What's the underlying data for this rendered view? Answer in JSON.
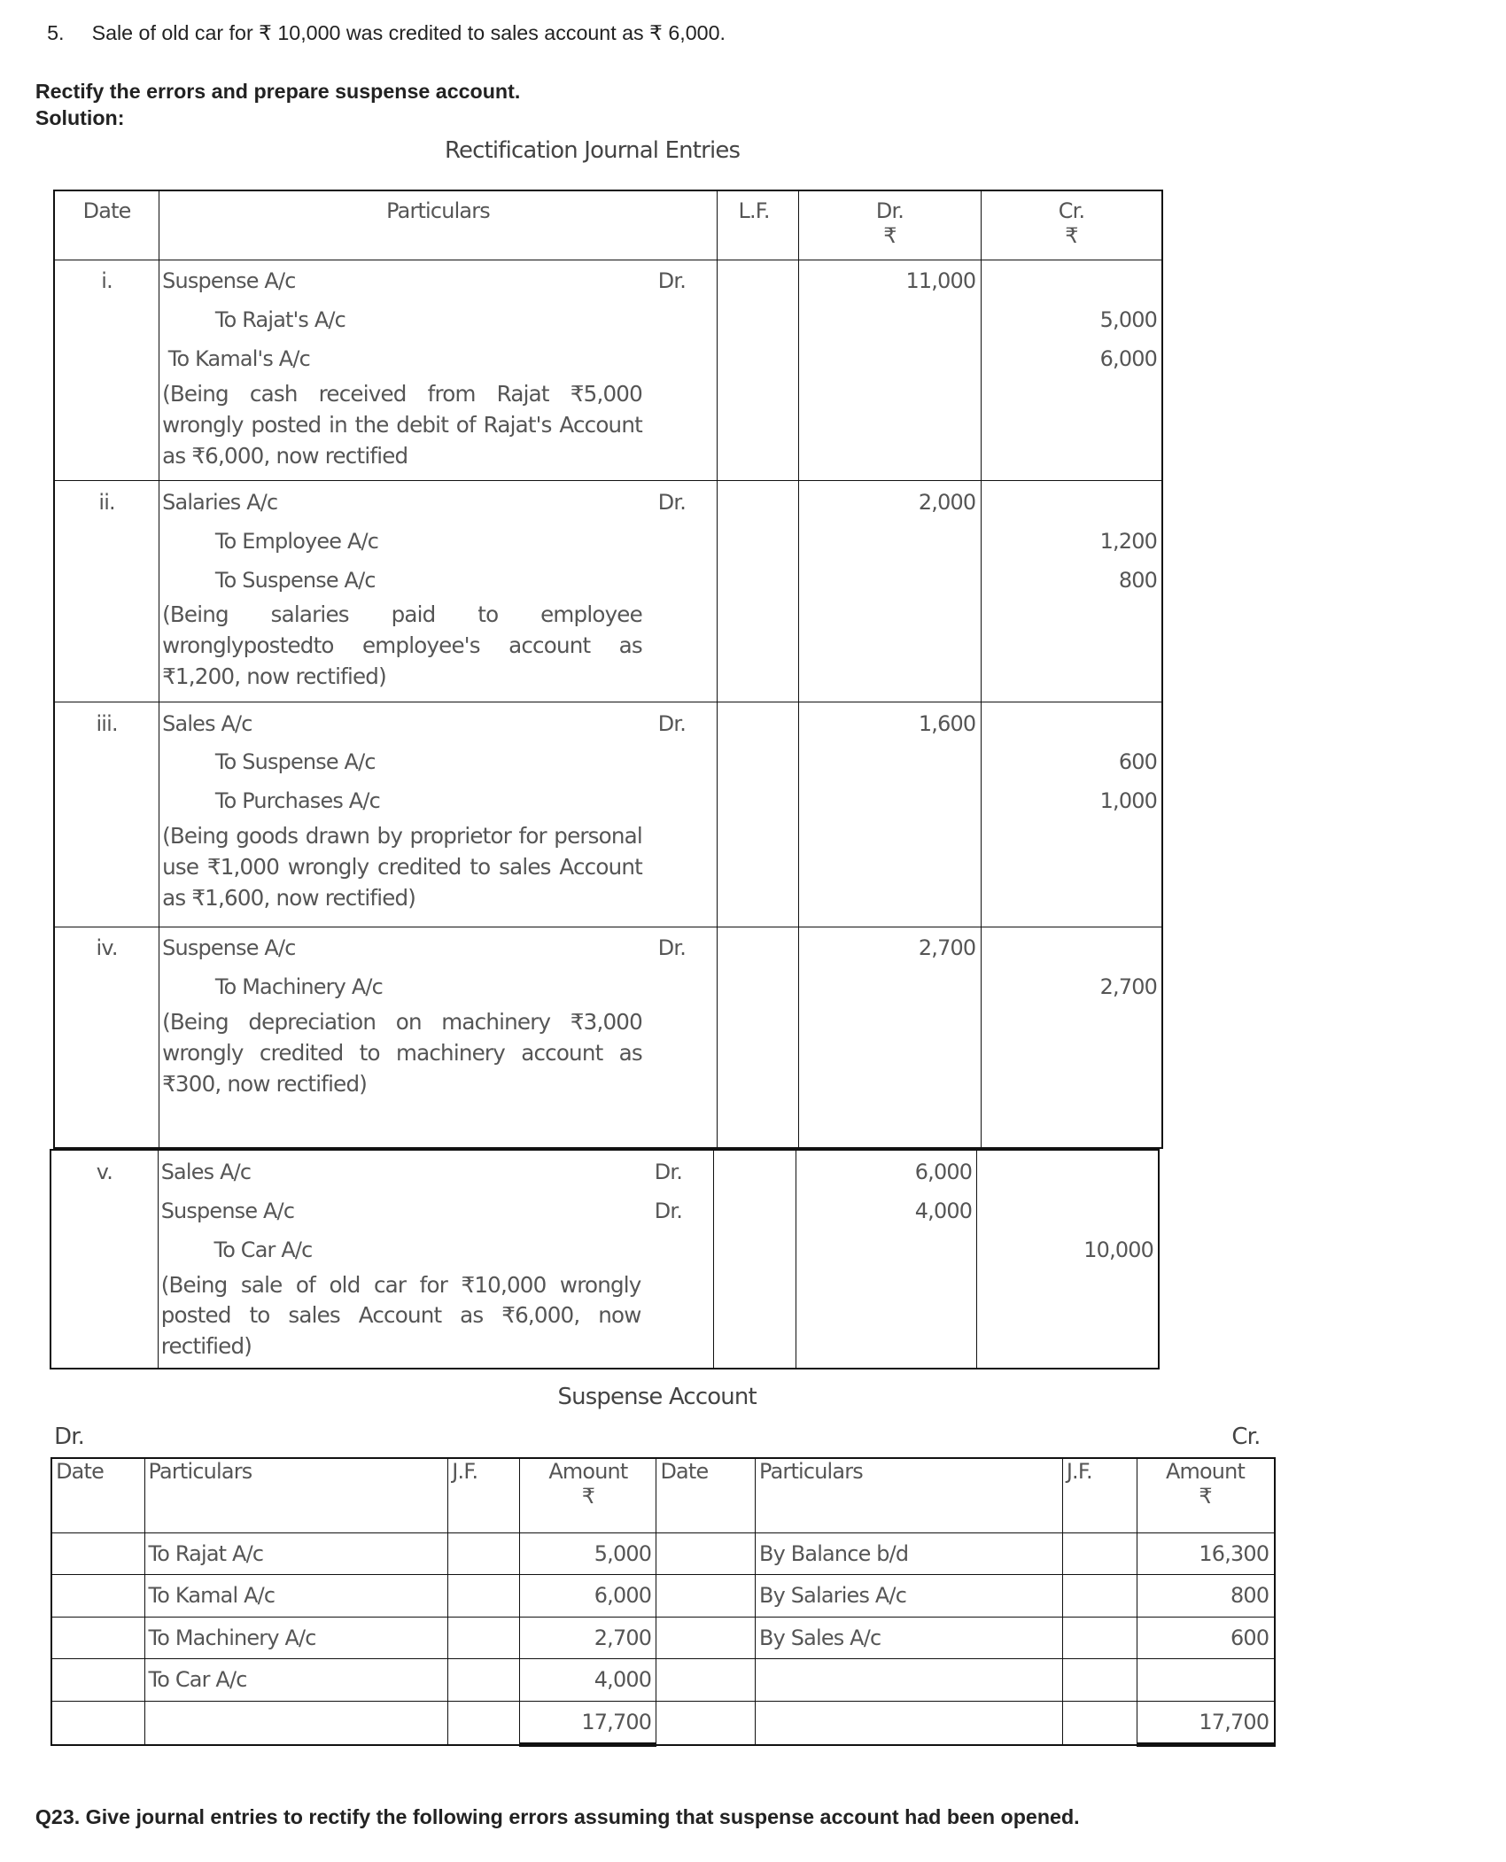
{
  "question_item": {
    "number": "5.",
    "text": "Sale of old car for ₹ 10,000 was credited to sales account as ₹ 6,000."
  },
  "instruction": "Rectify the errors and prepare suspense account.",
  "solution_label": "Solution:",
  "journal": {
    "title": "Rectification Journal Entries",
    "headers": {
      "date": "Date",
      "particulars": "Particulars",
      "lf": "L.F.",
      "dr": "Dr.",
      "cr": "Cr.",
      "currency": "₹"
    },
    "entries": [
      {
        "no": "i.",
        "lines": [
          {
            "text": "Suspense A/c",
            "level": 0,
            "marker": "Dr.",
            "dr": "11,000",
            "cr": ""
          },
          {
            "text": "To Rajat's A/c",
            "level": 2,
            "marker": "",
            "dr": "",
            "cr": "5,000"
          },
          {
            "text": "To Kamal's A/c",
            "level": 1,
            "marker": "",
            "dr": "",
            "cr": "6,000"
          }
        ],
        "narration": "(Being cash received from Rajat ₹5,000 wrongly posted in the debit of Rajat's Account as ₹6,000, now rectified"
      },
      {
        "no": "ii.",
        "lines": [
          {
            "text": "Salaries A/c",
            "level": 0,
            "marker": "Dr.",
            "dr": "2,000",
            "cr": ""
          },
          {
            "text": "To Employee A/c",
            "level": 2,
            "marker": "",
            "dr": "",
            "cr": "1,200"
          },
          {
            "text": "To Suspense A/c",
            "level": 2,
            "marker": "",
            "dr": "",
            "cr": "800"
          }
        ],
        "narration": "(Being salaries paid to employee wronglypostedto employee's account as ₹1,200, now rectified)"
      },
      {
        "no": "iii.",
        "lines": [
          {
            "text": "Sales A/c",
            "level": 0,
            "marker": "Dr.",
            "dr": "1,600",
            "cr": ""
          },
          {
            "text": "To Suspense A/c",
            "level": 2,
            "marker": "",
            "dr": "",
            "cr": "600"
          },
          {
            "text": "To Purchases A/c",
            "level": 2,
            "marker": "",
            "dr": "",
            "cr": "1,000"
          }
        ],
        "narration": "(Being goods drawn by proprietor for personal use ₹1,000 wrongly credited to sales Account as ₹1,600, now rectified)"
      },
      {
        "no": "iv.",
        "lines": [
          {
            "text": "Suspense A/c",
            "level": 0,
            "marker": "Dr.",
            "dr": "2,700",
            "cr": ""
          },
          {
            "text": "To Machinery A/c",
            "level": 2,
            "marker": "",
            "dr": "",
            "cr": "2,700"
          }
        ],
        "narration": "(Being depreciation on machinery ₹3,000 wrongly credited to machinery account as ₹300, now rectified)"
      },
      {
        "no": "v.",
        "lines": [
          {
            "text": "Sales A/c",
            "level": 0,
            "marker": "Dr.",
            "dr": "6,000",
            "cr": ""
          },
          {
            "text": "Suspense A/c",
            "level": 0,
            "marker": "Dr.",
            "dr": "4,000",
            "cr": ""
          },
          {
            "text": "To Car A/c",
            "level": 2,
            "marker": "",
            "dr": "",
            "cr": "10,000"
          }
        ],
        "narration": "(Being sale of old car for ₹10,000 wrongly posted to sales Account as ₹6,000, now rectified)"
      }
    ]
  },
  "suspense": {
    "title": "Suspense Account",
    "dr_label": "Dr.",
    "cr_label": "Cr.",
    "headers": {
      "date": "Date",
      "particulars": "Particulars",
      "jf": "J.F.",
      "amount": "Amount",
      "currency": "₹"
    },
    "rows": [
      {
        "dr_particulars": "To Rajat A/c",
        "dr_amount": "5,000",
        "cr_particulars": "By Balance b/d",
        "cr_amount": "16,300"
      },
      {
        "dr_particulars": "To Kamal A/c",
        "dr_amount": "6,000",
        "cr_particulars": "By Salaries A/c",
        "cr_amount": "800"
      },
      {
        "dr_particulars": "To Machinery A/c",
        "dr_amount": "2,700",
        "cr_particulars": "By Sales A/c",
        "cr_amount": "600"
      },
      {
        "dr_particulars": "To Car A/c",
        "dr_amount": "4,000",
        "cr_particulars": "",
        "cr_amount": ""
      }
    ],
    "totals": {
      "dr": "17,700",
      "cr": "17,700"
    }
  },
  "next_question": "Q23. Give journal entries to rectify the following errors assuming that suspense account had been opened."
}
